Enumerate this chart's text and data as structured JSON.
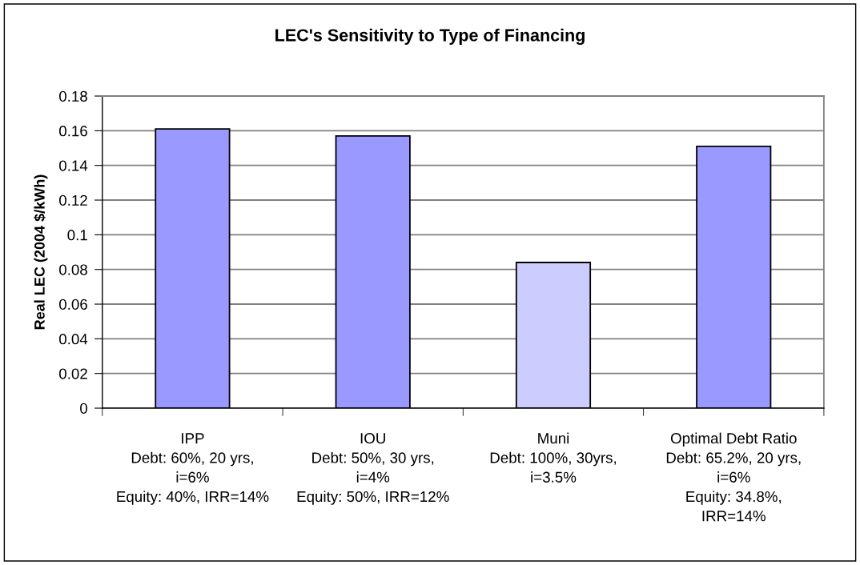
{
  "chart_data": {
    "type": "bar",
    "title": "LEC's Sensitivity to Type of Financing",
    "ylabel": "Real LEC (2004 $/kWh)",
    "categories": [
      "IPP\nDebt: 60%, 20 yrs,\ni=6%\nEquity: 40%, IRR=14%",
      "IOU\nDebt: 50%, 30 yrs,\ni=4%\nEquity: 50%, IRR=12%",
      "Muni\nDebt: 100%, 30yrs,\ni=3.5%",
      "Optimal Debt Ratio\nDebt: 65.2%, 20 yrs,\ni=6%\nEquity: 34.8%,\nIRR=14%"
    ],
    "values": [
      0.161,
      0.157,
      0.084,
      0.151
    ],
    "colors": [
      "#9999ff",
      "#9999ff",
      "#ccccff",
      "#9999ff"
    ],
    "ylim": [
      0,
      0.18
    ],
    "yticks": [
      0,
      0.02,
      0.04,
      0.06,
      0.08,
      0.1,
      0.12,
      0.14,
      0.16,
      0.18
    ],
    "grid": "y",
    "legend": false
  }
}
